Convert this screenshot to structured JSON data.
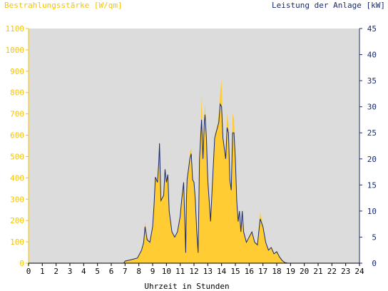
{
  "chart_data": {
    "type": "area",
    "title_left": "Bestrahlungsstärke [W/qm]",
    "title_right": "Leistung der Anlage [kW]",
    "xlabel": "Uhrzeit in Stunden",
    "xlim": [
      0,
      24
    ],
    "ylim_left": [
      0,
      1100
    ],
    "ylim_right": [
      0,
      45
    ],
    "x_ticks": [
      "0",
      "1",
      "2",
      "3",
      "4",
      "5",
      "6",
      "7",
      "8",
      "9",
      "10",
      "11",
      "12",
      "13",
      "14",
      "15",
      "16",
      "17",
      "18",
      "19",
      "20",
      "21",
      "22",
      "23",
      "24"
    ],
    "y_left_ticks": [
      "0",
      "100",
      "200",
      "300",
      "400",
      "500",
      "600",
      "700",
      "800",
      "900",
      "1000",
      "1100"
    ],
    "y_right_ticks": [
      "0",
      "5",
      "10",
      "15",
      "20",
      "25",
      "30",
      "35",
      "40",
      "45"
    ],
    "grid": false,
    "series": [
      {
        "axis": "left",
        "style": "filled-area",
        "values": [
          [
            0,
            0
          ],
          [
            6.9,
            0
          ],
          [
            7.0,
            8
          ],
          [
            7.5,
            18
          ],
          [
            7.9,
            25
          ],
          [
            8.0,
            40
          ],
          [
            8.2,
            60
          ],
          [
            8.35,
            100
          ],
          [
            8.45,
            200
          ],
          [
            8.6,
            120
          ],
          [
            8.8,
            100
          ],
          [
            9.0,
            180
          ],
          [
            9.1,
            280
          ],
          [
            9.2,
            400
          ],
          [
            9.35,
            380
          ],
          [
            9.45,
            480
          ],
          [
            9.5,
            580
          ],
          [
            9.6,
            300
          ],
          [
            9.8,
            320
          ],
          [
            9.9,
            450
          ],
          [
            10.0,
            380
          ],
          [
            10.1,
            420
          ],
          [
            10.2,
            250
          ],
          [
            10.4,
            150
          ],
          [
            10.6,
            120
          ],
          [
            10.8,
            150
          ],
          [
            11.0,
            220
          ],
          [
            11.1,
            300
          ],
          [
            11.25,
            380
          ],
          [
            11.4,
            80
          ],
          [
            11.45,
            300
          ],
          [
            11.5,
            400
          ],
          [
            11.6,
            450
          ],
          [
            11.7,
            520
          ],
          [
            11.8,
            540
          ],
          [
            11.9,
            400
          ],
          [
            12.0,
            380
          ],
          [
            12.1,
            300
          ],
          [
            12.2,
            150
          ],
          [
            12.3,
            100
          ],
          [
            12.4,
            500
          ],
          [
            12.55,
            780
          ],
          [
            12.65,
            500
          ],
          [
            12.75,
            700
          ],
          [
            12.8,
            750
          ],
          [
            12.9,
            600
          ],
          [
            13.0,
            400
          ],
          [
            13.1,
            300
          ],
          [
            13.2,
            200
          ],
          [
            13.35,
            400
          ],
          [
            13.5,
            600
          ],
          [
            13.7,
            650
          ],
          [
            13.8,
            700
          ],
          [
            13.9,
            800
          ],
          [
            14.0,
            860
          ],
          [
            14.1,
            600
          ],
          [
            14.2,
            550
          ],
          [
            14.3,
            500
          ],
          [
            14.4,
            700
          ],
          [
            14.5,
            650
          ],
          [
            14.6,
            400
          ],
          [
            14.7,
            350
          ],
          [
            14.8,
            700
          ],
          [
            14.9,
            680
          ],
          [
            15.0,
            500
          ],
          [
            15.1,
            300
          ],
          [
            15.2,
            200
          ],
          [
            15.3,
            250
          ],
          [
            15.4,
            150
          ],
          [
            15.5,
            250
          ],
          [
            15.6,
            150
          ],
          [
            15.8,
            100
          ],
          [
            16.0,
            130
          ],
          [
            16.2,
            150
          ],
          [
            16.4,
            100
          ],
          [
            16.6,
            90
          ],
          [
            16.8,
            240
          ],
          [
            17.0,
            180
          ],
          [
            17.2,
            100
          ],
          [
            17.4,
            60
          ],
          [
            17.6,
            80
          ],
          [
            17.8,
            40
          ],
          [
            18.0,
            60
          ],
          [
            18.2,
            30
          ],
          [
            18.4,
            10
          ],
          [
            18.6,
            2
          ],
          [
            18.8,
            0
          ],
          [
            24,
            0
          ]
        ]
      },
      {
        "axis": "right",
        "style": "line",
        "values": [
          [
            0,
            0
          ],
          [
            6.9,
            0
          ],
          [
            7.0,
            0.4
          ],
          [
            7.5,
            0.7
          ],
          [
            7.9,
            1
          ],
          [
            8.0,
            1.5
          ],
          [
            8.2,
            2.5
          ],
          [
            8.35,
            4
          ],
          [
            8.45,
            7
          ],
          [
            8.6,
            4.5
          ],
          [
            8.8,
            4
          ],
          [
            9.0,
            7
          ],
          [
            9.1,
            11
          ],
          [
            9.2,
            16.5
          ],
          [
            9.35,
            15.5
          ],
          [
            9.45,
            19.5
          ],
          [
            9.5,
            23
          ],
          [
            9.6,
            12
          ],
          [
            9.8,
            13
          ],
          [
            9.9,
            18
          ],
          [
            10.0,
            15.5
          ],
          [
            10.1,
            17
          ],
          [
            10.2,
            10
          ],
          [
            10.4,
            6
          ],
          [
            10.6,
            5
          ],
          [
            10.8,
            6
          ],
          [
            11.0,
            9
          ],
          [
            11.1,
            12
          ],
          [
            11.25,
            15.5
          ],
          [
            11.4,
            2
          ],
          [
            11.45,
            12
          ],
          [
            11.5,
            16
          ],
          [
            11.6,
            18
          ],
          [
            11.7,
            20
          ],
          [
            11.8,
            21
          ],
          [
            11.9,
            16
          ],
          [
            12.0,
            15.5
          ],
          [
            12.1,
            12
          ],
          [
            12.2,
            6
          ],
          [
            12.3,
            2
          ],
          [
            12.4,
            20
          ],
          [
            12.55,
            27.5
          ],
          [
            12.65,
            20
          ],
          [
            12.75,
            27
          ],
          [
            12.8,
            28.5
          ],
          [
            12.9,
            24
          ],
          [
            13.0,
            16
          ],
          [
            13.1,
            12
          ],
          [
            13.2,
            8
          ],
          [
            13.35,
            16
          ],
          [
            13.5,
            24
          ],
          [
            13.7,
            26
          ],
          [
            13.8,
            27
          ],
          [
            13.9,
            30.5
          ],
          [
            14.0,
            30
          ],
          [
            14.1,
            24
          ],
          [
            14.2,
            22
          ],
          [
            14.3,
            20
          ],
          [
            14.4,
            26
          ],
          [
            14.5,
            25
          ],
          [
            14.6,
            16
          ],
          [
            14.7,
            14
          ],
          [
            14.8,
            25
          ],
          [
            14.9,
            25
          ],
          [
            15.0,
            20
          ],
          [
            15.1,
            12
          ],
          [
            15.2,
            8
          ],
          [
            15.3,
            10
          ],
          [
            15.4,
            6
          ],
          [
            15.5,
            10
          ],
          [
            15.6,
            6
          ],
          [
            15.8,
            4
          ],
          [
            16.0,
            5
          ],
          [
            16.2,
            6
          ],
          [
            16.4,
            4
          ],
          [
            16.6,
            3.5
          ],
          [
            16.8,
            8.5
          ],
          [
            17.0,
            7
          ],
          [
            17.2,
            4
          ],
          [
            17.4,
            2.5
          ],
          [
            17.6,
            3
          ],
          [
            17.8,
            1.8
          ],
          [
            18.0,
            2.2
          ],
          [
            18.2,
            1.2
          ],
          [
            18.4,
            0.5
          ],
          [
            18.6,
            0.1
          ],
          [
            18.8,
            0
          ],
          [
            24,
            0
          ]
        ]
      }
    ],
    "colors": {
      "plot_background": "#dcdcdc",
      "irradiance_fill": "#ffcc33",
      "power_line": "#1a2a6b",
      "left_axis": "#f5c400",
      "right_axis": "#1a2a6b",
      "x_axis": "#000000"
    }
  }
}
